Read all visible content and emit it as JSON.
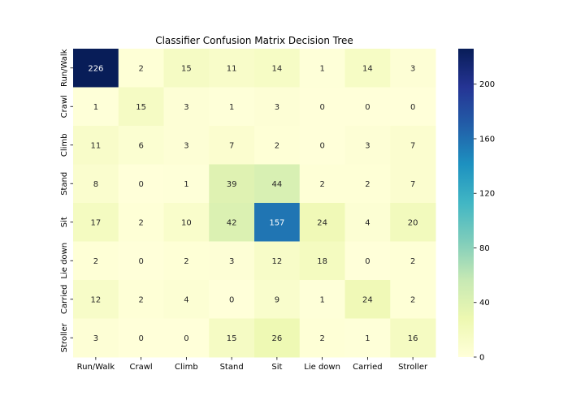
{
  "chart_data": {
    "type": "heatmap",
    "title": "Classifier Confusion Matrix Decision Tree",
    "xlabel": "",
    "ylabel": "",
    "row_labels": [
      "Run/Walk",
      "Crawl",
      "Climb",
      "Stand",
      "Sit",
      "Lie down",
      "Carried",
      "Stroller"
    ],
    "col_labels": [
      "Run/Walk",
      "Crawl",
      "Climb",
      "Stand",
      "Sit",
      "Lie down",
      "Carried",
      "Stroller"
    ],
    "values": [
      [
        226,
        2,
        15,
        11,
        14,
        1,
        14,
        3
      ],
      [
        1,
        15,
        3,
        1,
        3,
        0,
        0,
        0
      ],
      [
        11,
        6,
        3,
        7,
        2,
        0,
        3,
        7
      ],
      [
        8,
        0,
        1,
        39,
        44,
        2,
        2,
        7
      ],
      [
        17,
        2,
        10,
        42,
        157,
        24,
        4,
        20
      ],
      [
        2,
        0,
        2,
        3,
        12,
        18,
        0,
        2
      ],
      [
        12,
        2,
        4,
        0,
        9,
        1,
        24,
        2
      ],
      [
        3,
        0,
        0,
        15,
        26,
        2,
        1,
        16
      ]
    ],
    "colormap": "YlGnBu",
    "vmin": 0,
    "vmax": 226,
    "colorbar_ticks": [
      0,
      40,
      80,
      120,
      160,
      200
    ],
    "colors": {
      "low": "#ffffd9",
      "high": "#081d58"
    }
  }
}
